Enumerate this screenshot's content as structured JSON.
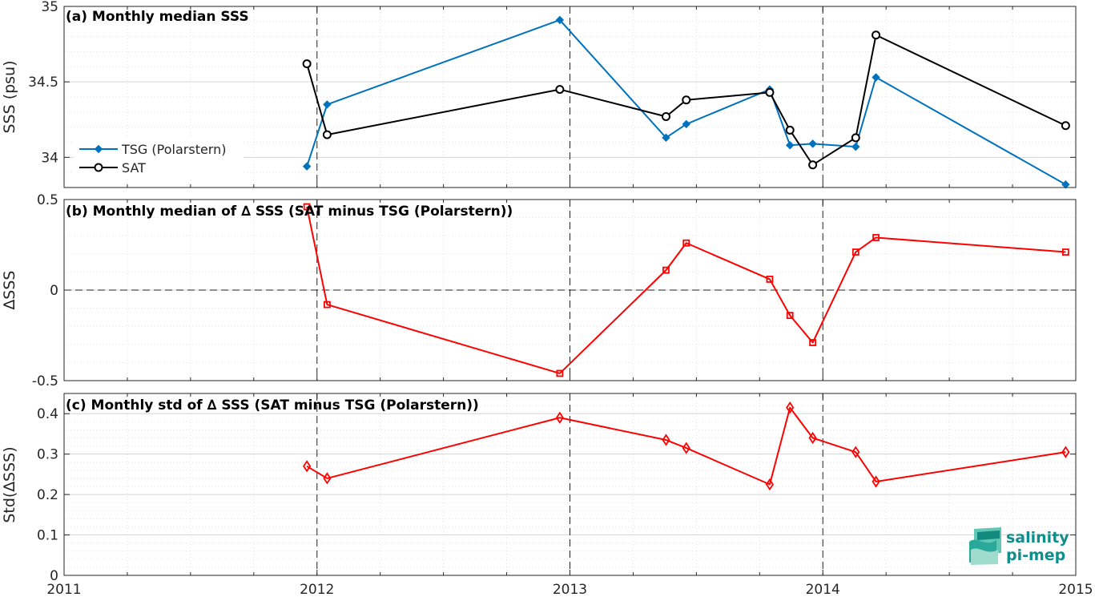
{
  "chart_data": [
    {
      "type": "line",
      "title": "(a) Monthly median SSS",
      "ylabel": "SSS (psu)",
      "xlim": [
        2011,
        2015
      ],
      "ylim": [
        33.8,
        35
      ],
      "yticks": [
        34,
        34.5,
        35
      ],
      "ytick_labels": [
        "34",
        "34.5",
        "35"
      ],
      "xtick_labels": [
        "2011",
        "2012",
        "2013",
        "2014",
        "2015"
      ],
      "grid": "on",
      "legend_placement": "lower-left",
      "series": [
        {
          "name": "TSG (Polarstern)",
          "color": "#0072bd",
          "marker": "diamond",
          "x": [
            2011.96,
            2012.04,
            2012.96,
            2013.38,
            2013.46,
            2013.79,
            2013.87,
            2013.96,
            2014.13,
            2014.21,
            2014.96
          ],
          "values": [
            33.94,
            34.35,
            34.91,
            34.13,
            34.22,
            34.45,
            34.08,
            34.09,
            34.07,
            34.53,
            33.82
          ]
        },
        {
          "name": "SAT",
          "color": "#000000",
          "marker": "circle",
          "x": [
            2011.96,
            2012.04,
            2012.96,
            2013.38,
            2013.46,
            2013.79,
            2013.87,
            2013.96,
            2014.13,
            2014.21,
            2014.96
          ],
          "values": [
            34.62,
            34.15,
            34.45,
            34.27,
            34.38,
            34.43,
            34.18,
            33.95,
            34.13,
            34.81,
            34.21
          ]
        }
      ]
    },
    {
      "type": "line",
      "title": "(b) Monthly median of ∆ SSS (SAT minus TSG (Polarstern))",
      "ylabel": "∆SSS",
      "xlim": [
        2011,
        2015
      ],
      "ylim": [
        -0.5,
        0.5
      ],
      "yticks": [
        -0.5,
        0,
        0.5
      ],
      "ytick_labels": [
        "-0.5",
        "0",
        "0.5"
      ],
      "xtick_labels": [
        "2011",
        "2012",
        "2013",
        "2014",
        "2015"
      ],
      "grid": "on",
      "zero_line": true,
      "series": [
        {
          "color": "#ff0000",
          "marker": "square",
          "x": [
            2011.96,
            2012.04,
            2012.96,
            2013.38,
            2013.46,
            2013.79,
            2013.87,
            2013.96,
            2014.13,
            2014.21,
            2014.96
          ],
          "values": [
            0.46,
            -0.08,
            -0.46,
            0.11,
            0.26,
            0.06,
            -0.14,
            -0.29,
            0.21,
            0.29,
            0.21
          ]
        }
      ]
    },
    {
      "type": "line",
      "title": "(c) Monthly std of ∆ SSS (SAT minus TSG (Polarstern))",
      "ylabel": "Std(∆SSS)",
      "xlim": [
        2011,
        2015
      ],
      "ylim": [
        0,
        0.45
      ],
      "yticks": [
        0,
        0.1,
        0.2,
        0.3,
        0.4
      ],
      "ytick_labels": [
        "0",
        "0.1",
        "0.2",
        "0.3",
        "0.4"
      ],
      "xtick_labels": [
        "2011",
        "2012",
        "2013",
        "2014",
        "2015"
      ],
      "grid": "on",
      "series": [
        {
          "color": "#ff0000",
          "marker": "diamond-open",
          "x": [
            2011.96,
            2012.04,
            2012.96,
            2013.38,
            2013.46,
            2013.79,
            2013.87,
            2013.96,
            2014.13,
            2014.21,
            2014.96
          ],
          "values": [
            0.27,
            0.24,
            0.39,
            0.335,
            0.315,
            0.225,
            0.415,
            0.34,
            0.305,
            0.232,
            0.305
          ]
        }
      ]
    }
  ],
  "logo": {
    "line1": "salinity",
    "line2": "pi-mep",
    "color": "#0e8f8c"
  }
}
